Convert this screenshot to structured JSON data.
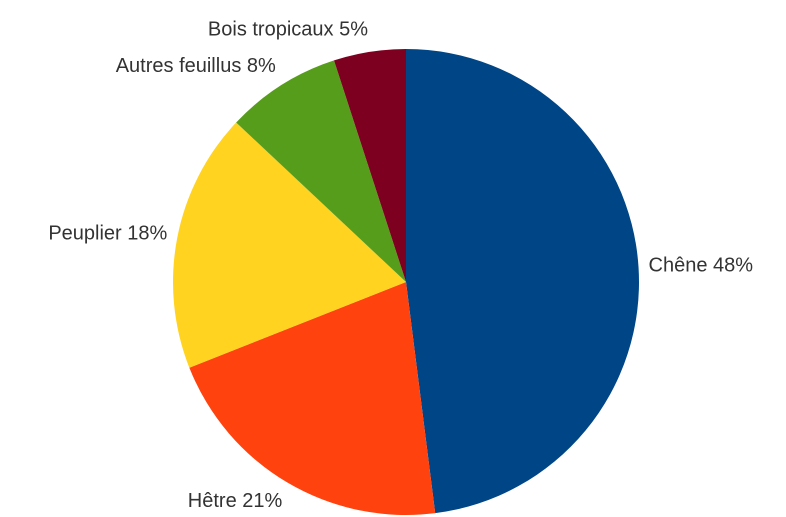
{
  "chart_data": {
    "type": "pie",
    "values": [
      48,
      21,
      18,
      8,
      5
    ],
    "value_labels": [
      "Chêne 48%",
      "Hêtre 21%",
      "Peuplier 18%",
      "Autres feuillus 8%",
      "Bois tropicaux 5%"
    ],
    "colors": [
      "#004586",
      "#ff420e",
      "#ffd320",
      "#579d1c",
      "#7e0021"
    ]
  }
}
